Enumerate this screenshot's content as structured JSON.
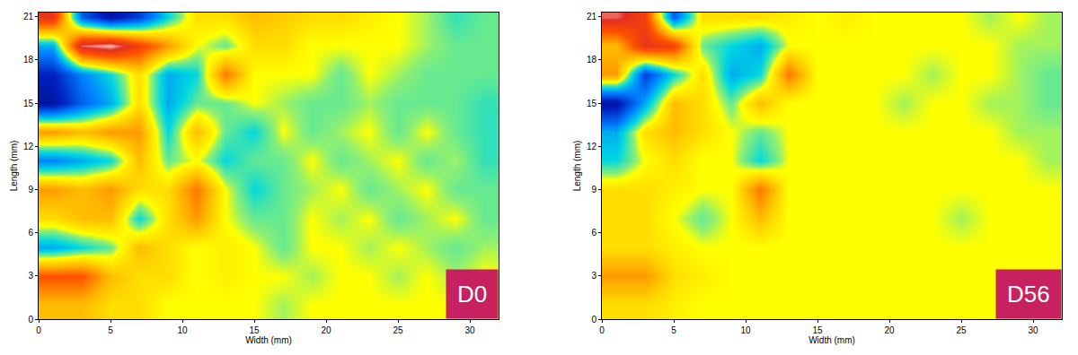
{
  "chart_data": [
    {
      "type": "heatmap",
      "annotation": "D0",
      "xlabel": "Width (mm)",
      "ylabel": "Length (mm)",
      "xlim": [
        0,
        32
      ],
      "ylim": [
        0,
        21.3
      ],
      "xticks": [
        0,
        5,
        10,
        15,
        20,
        25,
        30
      ],
      "yticks": [
        0,
        3,
        6,
        9,
        12,
        15,
        18,
        21
      ],
      "zlim": [
        -1,
        1
      ],
      "x": [
        1,
        3,
        5,
        7,
        9,
        11,
        13,
        15,
        17,
        19,
        21,
        23,
        25,
        27,
        29,
        31
      ],
      "y": [
        1,
        3,
        5,
        7,
        9,
        11,
        13,
        15,
        17,
        19,
        21
      ],
      "z": [
        [
          0.2,
          0.2,
          0.1,
          0.1,
          0,
          0,
          0,
          0,
          -0.05,
          0,
          0,
          0,
          0,
          0,
          0,
          0
        ],
        [
          0.5,
          0.5,
          0.2,
          0.1,
          0.1,
          0,
          0.05,
          0,
          0,
          -0.05,
          0,
          0,
          -0.05,
          0,
          -0.05,
          0
        ],
        [
          -0.3,
          -0.2,
          -0.1,
          0.2,
          0.1,
          0,
          0.05,
          0,
          -0.1,
          0,
          0,
          -0.05,
          0,
          -0.05,
          -0.1,
          -0.05
        ],
        [
          0.1,
          0.2,
          0.2,
          -0.2,
          0.1,
          0.3,
          0,
          -0.1,
          -0.1,
          0,
          -0.05,
          0,
          -0.1,
          -0.05,
          0,
          -0.1
        ],
        [
          0.3,
          0.2,
          0.3,
          0.1,
          0.1,
          0.4,
          0,
          -0.2,
          -0.1,
          -0.05,
          0,
          -0.1,
          -0.05,
          0,
          -0.1,
          -0.1
        ],
        [
          -0.4,
          -0.3,
          -0.2,
          0.2,
          -0.1,
          0,
          -0.2,
          -0.1,
          -0.1,
          0,
          -0.1,
          -0.05,
          0,
          -0.1,
          -0.05,
          -0.15
        ],
        [
          0.3,
          0.2,
          0.3,
          0.3,
          -0.2,
          0.2,
          -0.1,
          -0.2,
          0,
          -0.1,
          -0.05,
          0,
          -0.1,
          0,
          -0.1,
          -0.15
        ],
        [
          -0.8,
          -0.5,
          -0.3,
          0.1,
          -0.3,
          -0.1,
          -0.1,
          0,
          -0.05,
          -0.1,
          -0.1,
          -0.05,
          -0.1,
          -0.1,
          -0.1,
          -0.15
        ],
        [
          -0.7,
          -0.4,
          -0.2,
          0.1,
          -0.3,
          -0.2,
          0.4,
          0,
          0,
          0,
          -0.1,
          0,
          -0.05,
          -0.1,
          -0.1,
          -0.1
        ],
        [
          -0.3,
          0.8,
          0.9,
          0.6,
          0.3,
          0,
          -0.1,
          0.1,
          0.1,
          0,
          0,
          0,
          0,
          -0.05,
          -0.1,
          -0.1
        ],
        [
          0.7,
          -0.5,
          -0.8,
          -0.6,
          -0.2,
          0.1,
          0.1,
          0.2,
          0.15,
          0.1,
          0.1,
          0.05,
          0,
          -0.05,
          -0.15,
          -0.1
        ]
      ]
    },
    {
      "type": "heatmap",
      "annotation": "D56",
      "xlabel": "Width (mm)",
      "ylabel": "Length (mm)",
      "xlim": [
        0,
        32
      ],
      "ylim": [
        0,
        21.3
      ],
      "xticks": [
        0,
        5,
        10,
        15,
        20,
        25,
        30
      ],
      "yticks": [
        0,
        3,
        6,
        9,
        12,
        15,
        18,
        21
      ],
      "zlim": [
        -1,
        1
      ],
      "x": [
        1,
        3,
        5,
        7,
        9,
        11,
        13,
        15,
        17,
        19,
        21,
        23,
        25,
        27,
        29,
        31
      ],
      "y": [
        1,
        3,
        5,
        7,
        9,
        11,
        13,
        15,
        17,
        19,
        21
      ],
      "z": [
        [
          0.1,
          0.1,
          0.05,
          0,
          0,
          0,
          0,
          0,
          0,
          0,
          0,
          0,
          0,
          0,
          0,
          0
        ],
        [
          0.3,
          0.3,
          0.1,
          0.05,
          0,
          0,
          0,
          0,
          0,
          0,
          0,
          0,
          0,
          0,
          0,
          0
        ],
        [
          0.1,
          0.1,
          0.05,
          0,
          0,
          0,
          0,
          0,
          0,
          0,
          0,
          0,
          0,
          0,
          0,
          0
        ],
        [
          0.1,
          0.1,
          0,
          -0.1,
          0,
          0.2,
          0,
          0,
          0,
          0,
          0,
          0,
          -0.05,
          0,
          0,
          0
        ],
        [
          0.1,
          0.1,
          0.05,
          0,
          0,
          0.4,
          0,
          0,
          0,
          0,
          0,
          0,
          0,
          0,
          0,
          0
        ],
        [
          -0.2,
          0,
          0.1,
          0,
          0,
          -0.2,
          0,
          0,
          0,
          0,
          0,
          0,
          0,
          0,
          0,
          -0.05
        ],
        [
          -0.3,
          0.1,
          0.2,
          0.1,
          0,
          -0.1,
          0,
          0,
          0,
          0,
          0,
          0,
          0,
          0,
          -0.05,
          -0.05
        ],
        [
          -0.8,
          -0.3,
          0.2,
          0.1,
          -0.1,
          0.2,
          0,
          0,
          0,
          0,
          -0.05,
          0,
          0,
          -0.05,
          -0.05,
          -0.1
        ],
        [
          0.3,
          -0.6,
          -0.2,
          0.1,
          -0.3,
          -0.2,
          0.4,
          0,
          0,
          0,
          0,
          -0.05,
          0,
          0,
          -0.05,
          -0.1
        ],
        [
          0.2,
          0.7,
          0.6,
          -0.1,
          -0.2,
          -0.3,
          0,
          0,
          0,
          0,
          0,
          0,
          0,
          0,
          -0.05,
          -0.05
        ],
        [
          0.8,
          0.6,
          -0.5,
          0.1,
          0.1,
          0.1,
          0.05,
          0,
          0.05,
          0,
          0,
          0,
          0,
          -0.05,
          0,
          -0.05
        ]
      ]
    }
  ]
}
